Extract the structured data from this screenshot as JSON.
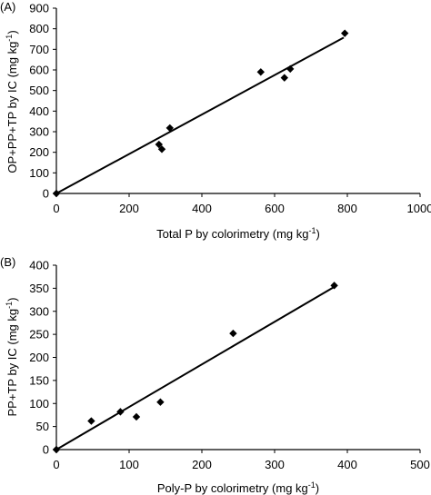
{
  "chart_data": [
    {
      "type": "scatter",
      "panel": "(A)",
      "ylabel": "OP+PP+TP by IC (mg kg",
      "ylabel_sup": "-1",
      "ylabel_close": ")",
      "xlabel": "Total P by colorimetry (mg kg",
      "xlabel_sup": "-1",
      "xlabel_close": ")",
      "xlim": [
        0,
        1000
      ],
      "ylim": [
        0,
        900
      ],
      "xticks": [
        0,
        200,
        400,
        600,
        800,
        1000
      ],
      "yticks": [
        0,
        100,
        200,
        300,
        400,
        500,
        600,
        700,
        800,
        900
      ],
      "points": [
        {
          "x": 0,
          "y": 0
        },
        {
          "x": 282,
          "y": 238
        },
        {
          "x": 290,
          "y": 215
        },
        {
          "x": 312,
          "y": 318
        },
        {
          "x": 562,
          "y": 590
        },
        {
          "x": 627,
          "y": 562
        },
        {
          "x": 643,
          "y": 605
        },
        {
          "x": 793,
          "y": 778
        }
      ],
      "fit_line": {
        "x": [
          0,
          790
        ],
        "y": [
          0,
          757
        ]
      }
    },
    {
      "type": "scatter",
      "panel": "(B)",
      "ylabel": "PP+TP by IC (mg kg",
      "ylabel_sup": "-1",
      "ylabel_close": ")",
      "xlabel": "Poly-P by colorimetry (mg kg",
      "xlabel_sup": "-1",
      "xlabel_close": ")",
      "xlim": [
        0,
        500
      ],
      "ylim": [
        0,
        400
      ],
      "xticks": [
        0,
        100,
        200,
        300,
        400,
        500
      ],
      "yticks": [
        0,
        50,
        100,
        150,
        200,
        250,
        300,
        350,
        400
      ],
      "points": [
        {
          "x": 0,
          "y": 0
        },
        {
          "x": 48,
          "y": 62
        },
        {
          "x": 88,
          "y": 82
        },
        {
          "x": 110,
          "y": 71
        },
        {
          "x": 143,
          "y": 103
        },
        {
          "x": 243,
          "y": 252
        },
        {
          "x": 382,
          "y": 356
        }
      ],
      "fit_line": {
        "x": [
          0,
          382
        ],
        "y": [
          0,
          353
        ]
      }
    }
  ]
}
